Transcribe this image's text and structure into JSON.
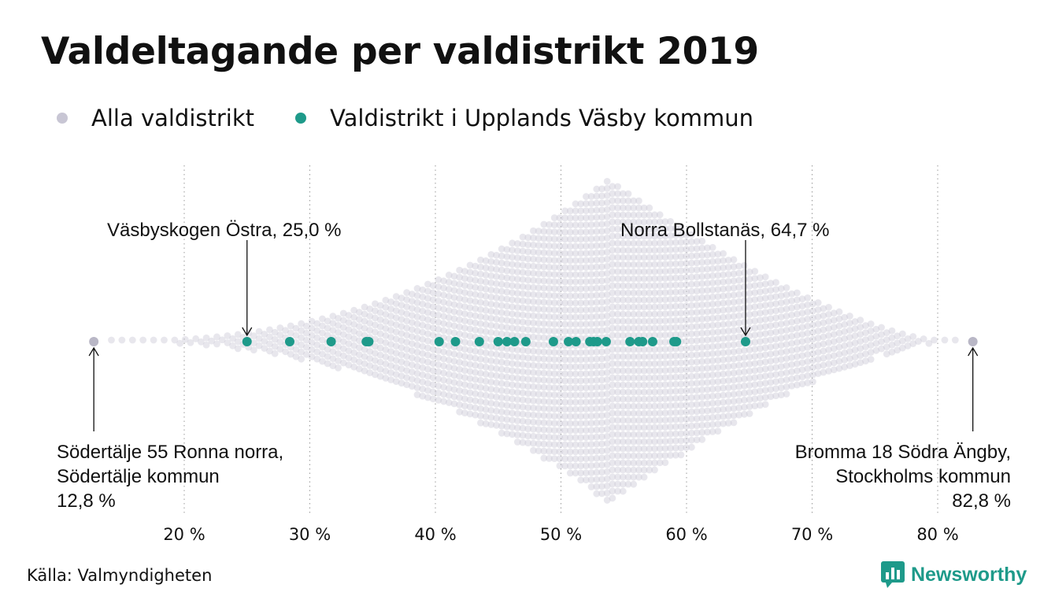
{
  "title": "Valdeltagande per valdistrikt 2019",
  "legend": {
    "all": {
      "label": "Alla valdistrikt",
      "color": "#c8c6d4"
    },
    "local": {
      "label": "Valdistrikt i Upplands Väsby kommun",
      "color": "#1e9a8a"
    }
  },
  "source": "Källa: Valmyndigheten",
  "brand": {
    "name": "Newsworthy",
    "color": "#1e9a8a",
    "icon": "bar-chart-logo-icon"
  },
  "chart_data": {
    "type": "scatter",
    "subtype": "beeswarm",
    "xlim": [
      12,
      84
    ],
    "x_ticks": [
      20,
      30,
      40,
      50,
      60,
      70,
      80
    ],
    "x_tick_labels": [
      "20 %",
      "30 %",
      "40 %",
      "50 %",
      "60 %",
      "70 %",
      "80 %"
    ],
    "grid": "vertical dotted",
    "series": [
      {
        "name": "Valdistrikt i Upplands Väsby kommun",
        "color": "#1e9a8a",
        "values": [
          25.0,
          28.4,
          31.7,
          34.5,
          34.7,
          40.3,
          41.6,
          43.5,
          45.0,
          45.7,
          46.3,
          47.2,
          49.4,
          50.6,
          51.2,
          52.3,
          52.6,
          52.9,
          53.6,
          55.5,
          56.2,
          56.5,
          57.3,
          59.0,
          59.2,
          64.7
        ]
      }
    ],
    "all_districts": {
      "name": "Alla valdistrikt",
      "color": "#c8c6d4",
      "min": 12.8,
      "max": 82.8,
      "peak": 53.8
    },
    "annotations": [
      {
        "id": "min",
        "value": 12.8,
        "lines": [
          "Södertälje 55 Ronna norra,",
          "Södertälje kommun",
          "12,8 %"
        ]
      },
      {
        "id": "max",
        "value": 82.8,
        "lines": [
          "Bromma 18 Södra Ängby,",
          "Stockholms kommun",
          "82,8 %"
        ]
      },
      {
        "id": "vasbyskogen",
        "value": 25.0,
        "lines": [
          "Väsbyskogen Östra, 25,0 %"
        ]
      },
      {
        "id": "bollstanas",
        "value": 64.7,
        "lines": [
          "Norra Bollstanäs, 64,7 %"
        ]
      }
    ]
  }
}
